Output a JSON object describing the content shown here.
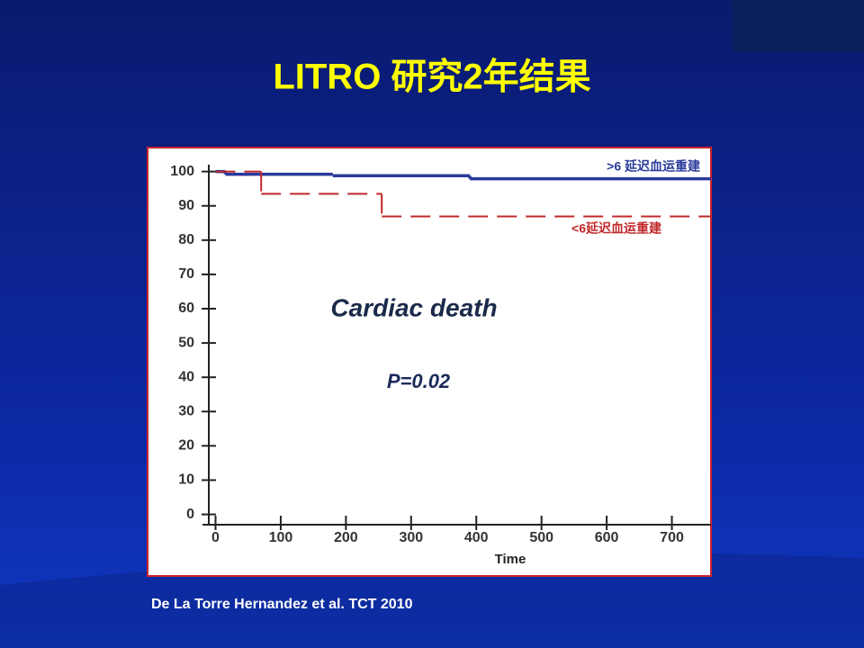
{
  "chart_data": {
    "type": "step",
    "title": "LITRO 研究2年结果",
    "annotations": [
      "Cardiac death",
      "P=0.02"
    ],
    "x_label": "Time",
    "source": "De La Torre Hernandez et al.  TCT 2010",
    "xlim": [
      -20,
      760
    ],
    "xticks": [
      0,
      100,
      200,
      300,
      400,
      500,
      600,
      700
    ],
    "ylim": [
      -3,
      102
    ],
    "yticks": [
      0,
      10,
      20,
      30,
      40,
      50,
      60,
      70,
      80,
      90,
      100
    ],
    "series": [
      {
        "name": ">6 延迟血运重建",
        "color": "#2a3a9a",
        "dash": false,
        "x": [
          0,
          15,
          180,
          390,
          760
        ],
        "values": [
          100,
          99.2,
          98.8,
          97.9,
          97.9
        ]
      },
      {
        "name": "<6延迟血运重建",
        "color": "#c0282a",
        "dash": true,
        "x": [
          0,
          70,
          255,
          760
        ],
        "values": [
          100,
          93.5,
          86.9,
          86.9
        ]
      }
    ]
  }
}
